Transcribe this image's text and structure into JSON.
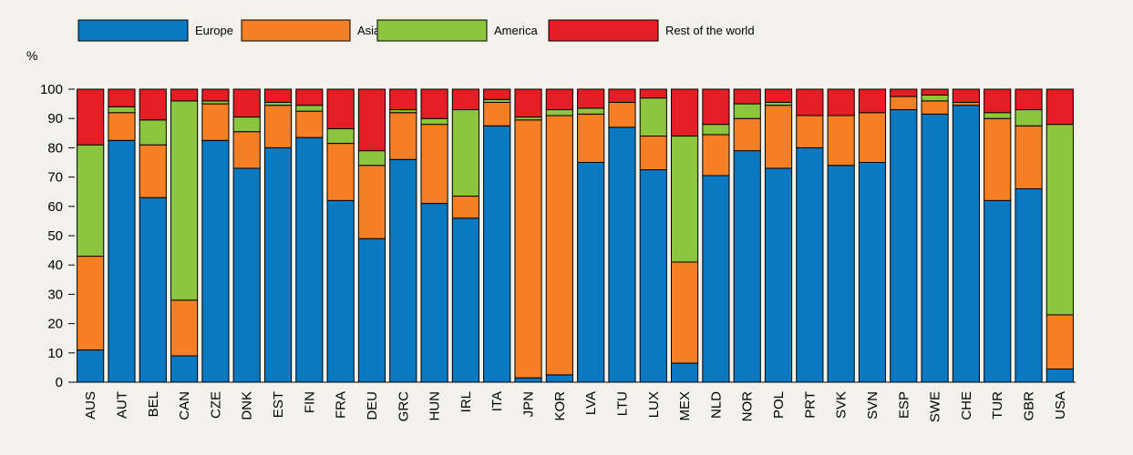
{
  "chart_data": {
    "type": "bar",
    "stacked": true,
    "title": "",
    "xlabel": "",
    "ylabel": "%",
    "ylim": [
      0,
      100
    ],
    "yticks": [
      0,
      10,
      20,
      30,
      40,
      50,
      60,
      70,
      80,
      90,
      100
    ],
    "grid": false,
    "legend_position": "top",
    "categories": [
      "AUS",
      "AUT",
      "BEL",
      "CAN",
      "CZE",
      "DNK",
      "EST",
      "FIN",
      "FRA",
      "DEU",
      "GRC",
      "HUN",
      "IRL",
      "ITA",
      "JPN",
      "KOR",
      "LVA",
      "LTU",
      "LUX",
      "MEX",
      "NLD",
      "NOR",
      "POL",
      "PRT",
      "SVK",
      "SVN",
      "ESP",
      "SWE",
      "CHE",
      "TUR",
      "GBR",
      "USA"
    ],
    "series": [
      {
        "name": "Europe",
        "color": "#0b78c2",
        "values": [
          11,
          82.5,
          63,
          9,
          82.5,
          73,
          80,
          83.5,
          62,
          49,
          76,
          61,
          56,
          87.5,
          1.5,
          2.5,
          75,
          87,
          72.5,
          6.5,
          70.5,
          79,
          73,
          80,
          74,
          75,
          93,
          91.5,
          94.5,
          62,
          66,
          4.5
        ]
      },
      {
        "name": "Asia and Pacific",
        "color": "#f47f25",
        "values": [
          32,
          9.5,
          18,
          19,
          12.5,
          12.5,
          14.5,
          9,
          19.5,
          25,
          16,
          27,
          7.5,
          8,
          88,
          88.5,
          16.5,
          8.5,
          11.5,
          34.5,
          14,
          11,
          21.5,
          11,
          17,
          17,
          4.5,
          4.5,
          1,
          28,
          21.5,
          18.5
        ]
      },
      {
        "name": "America",
        "color": "#8cc63f",
        "values": [
          38,
          2,
          8.5,
          68,
          1,
          5,
          1,
          2,
          5,
          5,
          1,
          2,
          29.5,
          1,
          1,
          2,
          2,
          0,
          13,
          43,
          3.5,
          5,
          1,
          0,
          0,
          0,
          0,
          2,
          0,
          2,
          5.5,
          65
        ]
      },
      {
        "name": "Rest of the world",
        "color": "#e31e26",
        "values": [
          19,
          6,
          10.5,
          4,
          4,
          9.5,
          4.5,
          5.5,
          13.5,
          21,
          7,
          10,
          7,
          3.5,
          9.5,
          7,
          6.5,
          4.5,
          3,
          16,
          12,
          5,
          4.5,
          9,
          9,
          8,
          2.5,
          2,
          4.5,
          8,
          7,
          12
        ]
      }
    ]
  }
}
